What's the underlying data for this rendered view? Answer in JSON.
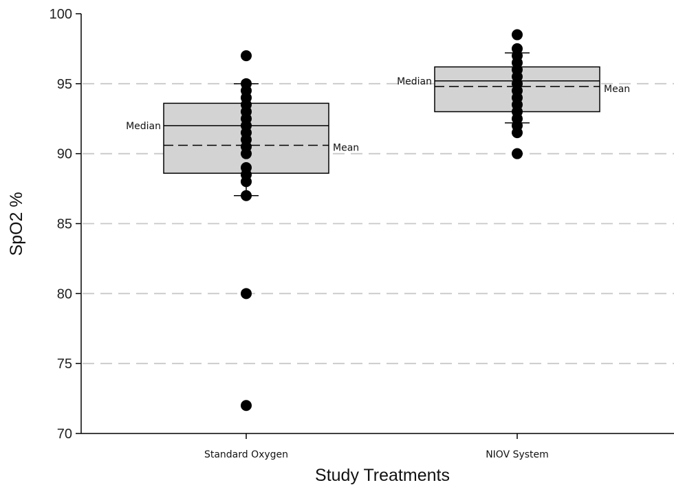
{
  "chart_data": {
    "type": "box",
    "title": "",
    "xlabel": "Study Treatments",
    "ylabel": "SpO2 %",
    "ylim": [
      70,
      100
    ],
    "yticks": [
      70,
      75,
      80,
      85,
      90,
      95,
      100
    ],
    "grid": {
      "y": true,
      "style": "dashed",
      "color": "#c8c8c8"
    },
    "box_fill": "#d3d3d3",
    "point_color": "#000000",
    "annotation_labels": {
      "median": "Median",
      "mean": "Mean"
    },
    "categories": [
      "Standard Oxygen",
      "NIOV System"
    ],
    "boxes": [
      {
        "name": "Standard Oxygen",
        "q1": 88.6,
        "median": 92.0,
        "q3": 93.6,
        "mean": 90.6,
        "whisker_low": 87.0,
        "whisker_high": 95.0,
        "points": [
          97,
          95,
          94.5,
          94,
          93.5,
          93,
          92.5,
          92,
          91.5,
          91,
          90.5,
          90,
          89,
          88.5,
          88,
          87,
          80,
          72
        ],
        "median_label_side": "left",
        "mean_label_side": "right"
      },
      {
        "name": "NIOV System",
        "q1": 93.0,
        "median": 95.2,
        "q3": 96.2,
        "mean": 94.8,
        "whisker_low": 92.2,
        "whisker_high": 97.2,
        "points": [
          98.5,
          97.5,
          97,
          96.5,
          96,
          95.5,
          95,
          94.5,
          94,
          93.5,
          93,
          92.5,
          92,
          91.5,
          90
        ],
        "median_label_side": "left",
        "mean_label_side": "right"
      }
    ]
  }
}
